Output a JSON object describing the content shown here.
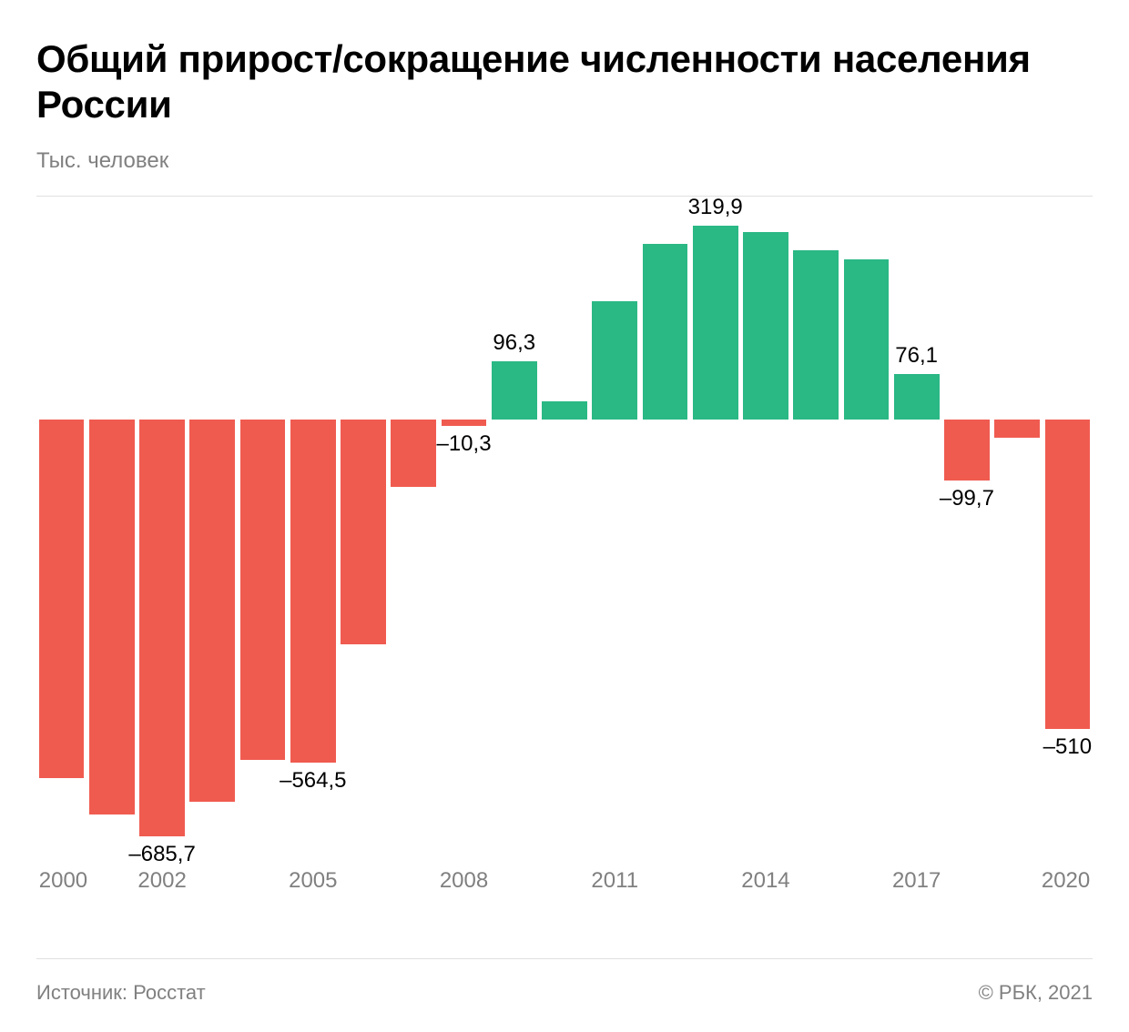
{
  "title": "Общий прирост/сокращение численности населения России",
  "subtitle": "Тыс. человек",
  "source": "Источник: Росстат",
  "copyright": "© РБК, 2021",
  "chart": {
    "type": "bar",
    "background_color": "#ffffff",
    "divider_color": "#e0e0e0",
    "positive_color": "#2ab885",
    "negative_color": "#f05b50",
    "text_color": "#000000",
    "muted_color": "#808080",
    "title_fontsize": 42,
    "subtitle_fontsize": 24,
    "label_fontsize": 24,
    "tick_fontsize": 24,
    "footer_fontsize": 22,
    "y_min": -700,
    "y_max": 350,
    "bar_gap_ratio": 0.1,
    "years": [
      2000,
      2001,
      2002,
      2003,
      2004,
      2005,
      2006,
      2007,
      2008,
      2009,
      2010,
      2011,
      2012,
      2013,
      2014,
      2015,
      2016,
      2017,
      2018,
      2019,
      2020
    ],
    "values": [
      -590,
      -650,
      -685.7,
      -630,
      -560,
      -564.5,
      -370,
      -110,
      -10.3,
      96.3,
      30,
      195,
      290,
      319.9,
      310,
      280,
      265,
      76.1,
      -99.7,
      -30,
      -510
    ],
    "x_ticks": [
      2000,
      2002,
      2005,
      2008,
      2011,
      2014,
      2017,
      2020
    ],
    "value_labels": [
      {
        "year": 2002,
        "text": "–685,7",
        "position": "below"
      },
      {
        "year": 2005,
        "text": "–564,5",
        "position": "below"
      },
      {
        "year": 2008,
        "text": "–10,3",
        "position": "below"
      },
      {
        "year": 2009,
        "text": "96,3",
        "position": "above"
      },
      {
        "year": 2013,
        "text": "319,9",
        "position": "above"
      },
      {
        "year": 2017,
        "text": "76,1",
        "position": "above"
      },
      {
        "year": 2018,
        "text": "–99,7",
        "position": "below"
      },
      {
        "year": 2020,
        "text": "–510",
        "position": "below"
      }
    ]
  }
}
